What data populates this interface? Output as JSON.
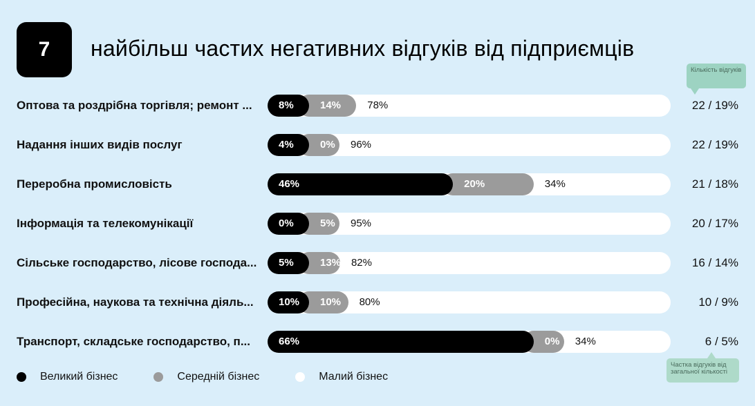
{
  "header": {
    "badge": "7",
    "title": "найбільш частих негативних відгуків від підприємців"
  },
  "annotations": {
    "count_hint": "Кількість відгуків",
    "share_hint": "Частка відгуків від загальної кількості"
  },
  "legend": [
    {
      "name": "Великий бізнес",
      "color": "#000000"
    },
    {
      "name": "Середній бізнес",
      "color": "#9b9b9b"
    },
    {
      "name": "Малий бізнес",
      "color": "#ffffff"
    }
  ],
  "chart_data": {
    "type": "bar",
    "stacked": true,
    "orientation": "horizontal",
    "xlim": [
      0,
      100
    ],
    "categories": [
      "Оптова та роздрібна торгівля; ремонт ...",
      "Надання інших видів послуг",
      "Переробна промисловість",
      "Інформація та телекомунікації",
      "Сільське господарство, лісове господа...",
      "Професійна, наукова та технічна діяль...",
      "Транспорт, складське господарство, п..."
    ],
    "series": [
      {
        "name": "Великий бізнес",
        "values": [
          8,
          4,
          46,
          0,
          5,
          10,
          66
        ],
        "labels": [
          "8%",
          "4%",
          "46%",
          "0%",
          "5%",
          "10%",
          "66%"
        ]
      },
      {
        "name": "Середній бізнес",
        "values": [
          14,
          0,
          20,
          5,
          13,
          10,
          0
        ],
        "labels": [
          "14%",
          "0%",
          "20%",
          "5%",
          "13%",
          "10%",
          "0%"
        ]
      },
      {
        "name": "Малий бізнес",
        "values": [
          78,
          96,
          34,
          95,
          82,
          80,
          34
        ],
        "labels": [
          "78%",
          "96%",
          "34%",
          "95%",
          "82%",
          "80%",
          "34%"
        ]
      }
    ],
    "counts": [
      "22 / 19%",
      "22 / 19%",
      "21 / 18%",
      "20 / 17%",
      "16 / 14%",
      "10 / 9%",
      "6 / 5%"
    ]
  }
}
